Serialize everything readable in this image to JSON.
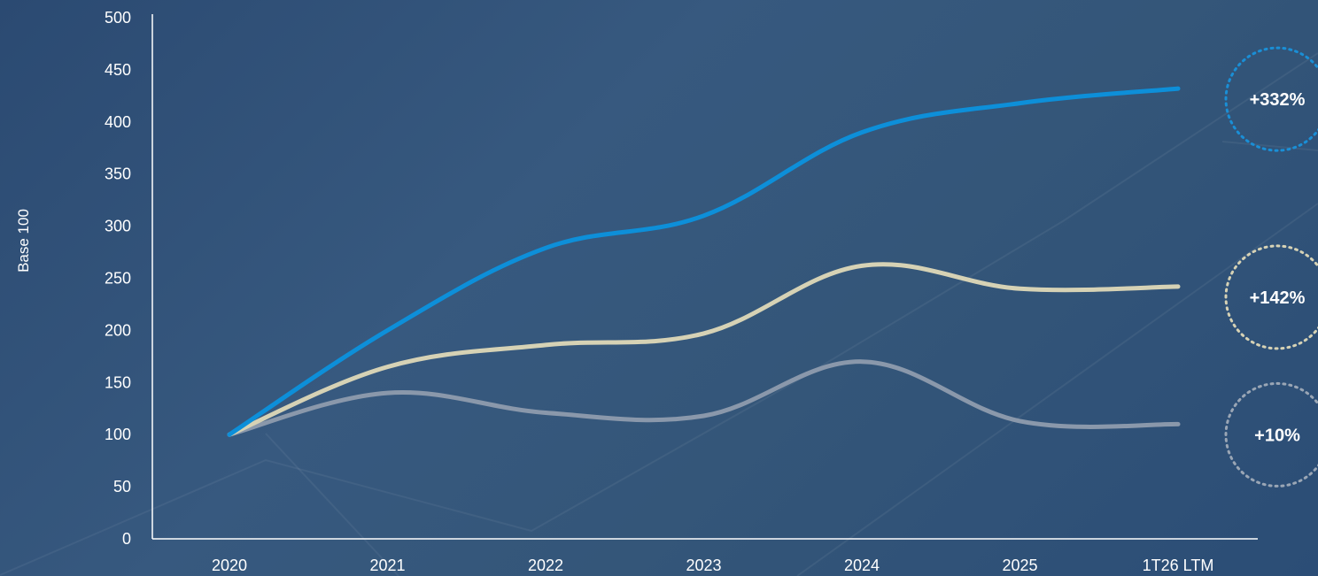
{
  "chart_data": {
    "type": "line",
    "ylabel": "Base 100",
    "xlabel": "",
    "ylim": [
      0,
      500
    ],
    "yticks": [
      "0",
      "50",
      "100",
      "150",
      "200",
      "250",
      "300",
      "350",
      "400",
      "450",
      "500"
    ],
    "categories": [
      "2020",
      "2021",
      "2022",
      "2023",
      "2024",
      "2025",
      "1T26 LTM"
    ],
    "grid": false,
    "series": [
      {
        "color": "#0d8fd9",
        "values": [
          100,
          200,
          279,
          310,
          390,
          418,
          432
        ],
        "badge": "+332%"
      },
      {
        "color": "#d6d2b5",
        "values": [
          100,
          165,
          186,
          197,
          262,
          240,
          242
        ],
        "badge": "+142%"
      },
      {
        "color": "#8a98ab",
        "values": [
          100,
          140,
          121,
          118,
          170,
          113,
          110
        ],
        "badge": "+10%"
      }
    ]
  }
}
